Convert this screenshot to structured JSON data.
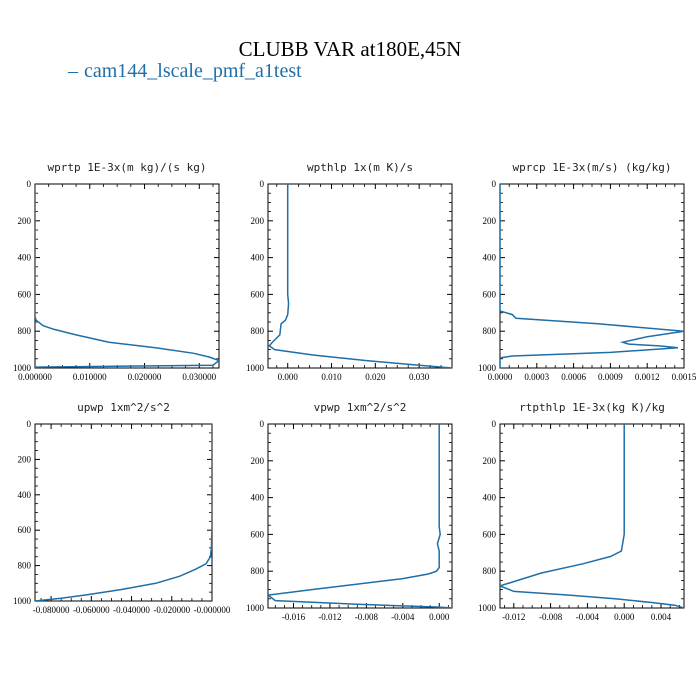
{
  "figure": {
    "title": "CLUBB VAR at180E,45N",
    "legend_label": "cam144_lscale_pmf_a1test",
    "legend_color": "#1f6ea8"
  },
  "chart_data": [
    {
      "type": "line",
      "title": "wprtp  1E-3x(m kg)/(s kg)",
      "xlim": [
        0.0,
        0.0336
      ],
      "ylim": [
        1000,
        0
      ],
      "xticks": [
        0.0,
        0.01,
        0.02,
        0.03
      ],
      "xtick_labels": [
        "0.000000",
        "0.010000",
        "0.020000",
        "0.030000"
      ],
      "yticks": [
        0,
        200,
        400,
        600,
        800,
        1000
      ],
      "ytick_labels": [
        "0",
        "200",
        "400",
        "600",
        "800",
        "1000"
      ],
      "series": [
        {
          "x": [
            0.0,
            0.0,
            0.0,
            0.0002,
            0.0015,
            0.0035,
            0.0075,
            0.0135,
            0.022,
            0.029,
            0.0318,
            0.0336,
            0.0325,
            0.0,
            0.0
          ],
          "y": [
            0,
            400,
            720,
            740,
            770,
            790,
            820,
            860,
            890,
            920,
            940,
            960,
            985,
            995,
            1000
          ]
        }
      ]
    },
    {
      "type": "line",
      "title": "wpthlp  1x(m K)/s",
      "xlim": [
        -0.0045,
        0.0375
      ],
      "ylim": [
        1000,
        0
      ],
      "xticks": [
        0.0,
        0.01,
        0.02,
        0.03
      ],
      "xtick_labels": [
        "0.000",
        "0.010",
        "0.020",
        "0.030"
      ],
      "yticks": [
        0,
        200,
        400,
        600,
        800,
        1000
      ],
      "ytick_labels": [
        "0",
        "200",
        "400",
        "600",
        "800",
        "1000"
      ],
      "series": [
        {
          "x": [
            0.0,
            0.0,
            0.0002,
            0.0,
            -0.0005,
            -0.0015,
            -0.0018,
            -0.0035,
            -0.0042,
            -0.003,
            0.006,
            0.018,
            0.03,
            0.0375
          ],
          "y": [
            0,
            600,
            650,
            710,
            740,
            760,
            820,
            860,
            880,
            900,
            930,
            960,
            985,
            1000
          ]
        }
      ]
    },
    {
      "type": "line",
      "title": "wprcp  1E-3x(m/s) (kg/kg)",
      "xlim": [
        0.0,
        0.0015
      ],
      "ylim": [
        1000,
        0
      ],
      "xticks": [
        0.0,
        0.0003,
        0.0006,
        0.0009,
        0.0012,
        0.0015
      ],
      "xtick_labels": [
        "0.0000",
        "0.0003",
        "0.0006",
        "0.0009",
        "0.0012",
        "0.0015"
      ],
      "yticks": [
        0,
        200,
        400,
        600,
        800,
        1000
      ],
      "ytick_labels": [
        "0",
        "200",
        "400",
        "600",
        "800",
        "1000"
      ],
      "series": [
        {
          "x": [
            0.0,
            0.0,
            0.0001,
            0.00013,
            0.0008,
            0.0015,
            0.0012,
            0.001,
            0.00105,
            0.0013,
            0.00145,
            0.0009,
            0.0001,
            0.0,
            0.0
          ],
          "y": [
            0,
            690,
            710,
            730,
            760,
            800,
            830,
            860,
            870,
            880,
            890,
            915,
            935,
            945,
            1000
          ]
        }
      ]
    },
    {
      "type": "line",
      "title": "upwp  1xm^2/s^2",
      "xlim": [
        -0.088,
        0.0
      ],
      "ylim": [
        1000,
        0
      ],
      "xticks": [
        -0.08,
        -0.06,
        -0.04,
        -0.02,
        0.0
      ],
      "xtick_labels": [
        "-0.080000",
        "-0.060000",
        "-0.040000",
        "-0.020000",
        "-0.000000"
      ],
      "yticks": [
        0,
        200,
        400,
        600,
        800,
        1000
      ],
      "ytick_labels": [
        "0",
        "200",
        "400",
        "600",
        "800",
        "1000"
      ],
      "series": [
        {
          "x": [
            0.0,
            0.0,
            -0.0003,
            -0.0008,
            -0.003,
            -0.008,
            -0.016,
            -0.028,
            -0.045,
            -0.062,
            -0.075,
            -0.088
          ],
          "y": [
            0,
            580,
            700,
            750,
            790,
            820,
            860,
            900,
            935,
            965,
            985,
            1000
          ]
        }
      ]
    },
    {
      "type": "line",
      "title": "vpwp  1xm^2/s^2",
      "xlim": [
        -0.0188,
        0.0014
      ],
      "ylim": [
        1000,
        0
      ],
      "xticks": [
        -0.016,
        -0.012,
        -0.008,
        -0.004,
        0.0
      ],
      "xtick_labels": [
        "-0.016",
        "-0.012",
        "-0.008",
        "-0.004",
        "0.000"
      ],
      "yticks": [
        0,
        200,
        400,
        600,
        800,
        1000
      ],
      "ytick_labels": [
        "0",
        "200",
        "400",
        "600",
        "800",
        "1000"
      ],
      "series": [
        {
          "x": [
            0.0,
            0.0,
            0.0001,
            -0.0002,
            0.0,
            0.0,
            -0.0003,
            -0.0012,
            -0.004,
            -0.009,
            -0.014,
            -0.0188,
            -0.018,
            -0.009,
            0.0,
            0.0014
          ],
          "y": [
            0,
            560,
            600,
            650,
            690,
            780,
            800,
            815,
            840,
            870,
            900,
            930,
            960,
            980,
            995,
            1000
          ]
        }
      ]
    },
    {
      "type": "line",
      "title": "rtpthlp  1E-3x(kg K)/kg",
      "xlim": [
        -0.0135,
        0.0065
      ],
      "ylim": [
        1000,
        0
      ],
      "xticks": [
        -0.012,
        -0.008,
        -0.004,
        0.0,
        0.004
      ],
      "xtick_labels": [
        "-0.012",
        "-0.008",
        "-0.004",
        "0.000",
        "0.004"
      ],
      "yticks": [
        0,
        200,
        400,
        600,
        800,
        1000
      ],
      "ytick_labels": [
        "0",
        "200",
        "400",
        "600",
        "800",
        "1000"
      ],
      "series": [
        {
          "x": [
            0.0,
            0.0,
            -0.0003,
            -0.0015,
            -0.0045,
            -0.009,
            -0.0135,
            -0.012,
            -0.006,
            -0.001,
            0.003,
            0.0055,
            0.0065
          ],
          "y": [
            0,
            600,
            690,
            720,
            760,
            810,
            880,
            910,
            930,
            950,
            970,
            985,
            1000
          ]
        }
      ]
    }
  ]
}
